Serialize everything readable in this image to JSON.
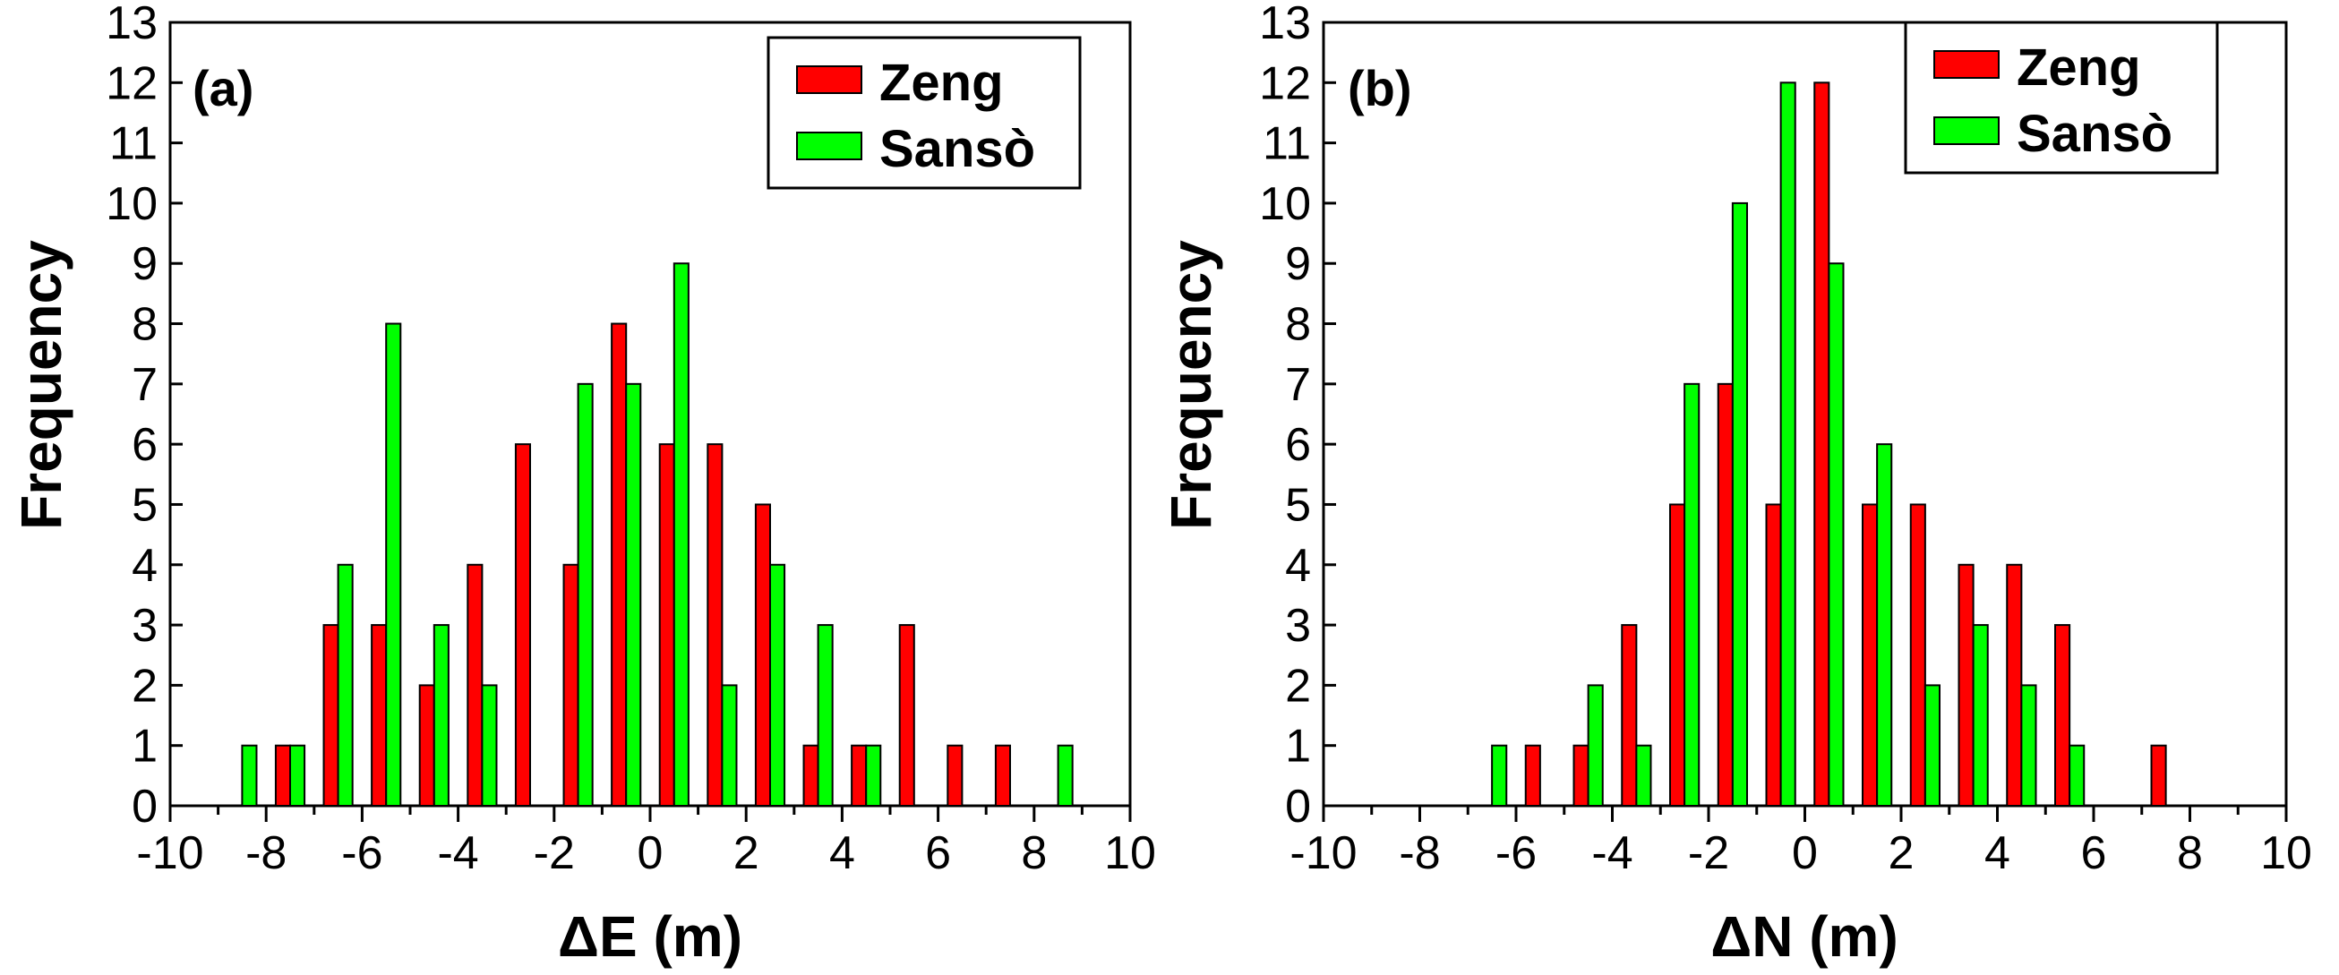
{
  "chart_data": [
    {
      "type": "bar",
      "panel_label": "(a)",
      "title": "",
      "xlabel": "ΔE (m)",
      "ylabel": "Frequency",
      "xlim": [
        -10,
        10
      ],
      "ylim": [
        0,
        13
      ],
      "xticks": [
        -10,
        -8,
        -6,
        -4,
        -2,
        0,
        2,
        4,
        6,
        8,
        10
      ],
      "yticks": [
        0,
        1,
        2,
        3,
        4,
        5,
        6,
        7,
        8,
        9,
        10,
        11,
        12,
        13
      ],
      "bin_centers": [
        -9.5,
        -8.5,
        -7.5,
        -6.5,
        -5.5,
        -4.5,
        -3.5,
        -2.5,
        -1.5,
        -0.5,
        0.5,
        1.5,
        2.5,
        3.5,
        4.5,
        5.5,
        6.5,
        7.5,
        8.5,
        9.5
      ],
      "series": [
        {
          "name": "Zeng",
          "color": "#ff0000",
          "values": [
            0,
            0,
            1,
            3,
            3,
            2,
            4,
            6,
            4,
            8,
            6,
            6,
            5,
            1,
            1,
            3,
            1,
            1,
            0,
            0
          ]
        },
        {
          "name": "Sansò",
          "color": "#00ff00",
          "values": [
            0,
            1,
            1,
            4,
            8,
            3,
            2,
            0,
            7,
            7,
            9,
            2,
            4,
            3,
            1,
            0,
            0,
            0,
            1,
            0
          ]
        }
      ],
      "legend": "top-right"
    },
    {
      "type": "bar",
      "panel_label": "(b)",
      "title": "",
      "xlabel": "ΔN (m)",
      "ylabel": "Frequency",
      "xlim": [
        -10,
        10
      ],
      "ylim": [
        0,
        13
      ],
      "xticks": [
        -10,
        -8,
        -6,
        -4,
        -2,
        0,
        2,
        4,
        6,
        8,
        10
      ],
      "yticks": [
        0,
        1,
        2,
        3,
        4,
        5,
        6,
        7,
        8,
        9,
        10,
        11,
        12,
        13
      ],
      "bin_centers": [
        -9.5,
        -8.5,
        -7.5,
        -6.5,
        -5.5,
        -4.5,
        -3.5,
        -2.5,
        -1.5,
        -0.5,
        0.5,
        1.5,
        2.5,
        3.5,
        4.5,
        5.5,
        6.5,
        7.5,
        8.5,
        9.5
      ],
      "series": [
        {
          "name": "Zeng",
          "color": "#ff0000",
          "values": [
            0,
            0,
            0,
            0,
            1,
            1,
            3,
            5,
            7,
            5,
            12,
            5,
            5,
            4,
            4,
            3,
            0,
            1,
            0,
            0
          ]
        },
        {
          "name": "Sansò",
          "color": "#00ff00",
          "values": [
            0,
            0,
            0,
            1,
            0,
            2,
            1,
            7,
            10,
            12,
            9,
            6,
            2,
            3,
            2,
            1,
            0,
            0,
            0,
            0
          ]
        }
      ],
      "legend": "top-right"
    }
  ]
}
